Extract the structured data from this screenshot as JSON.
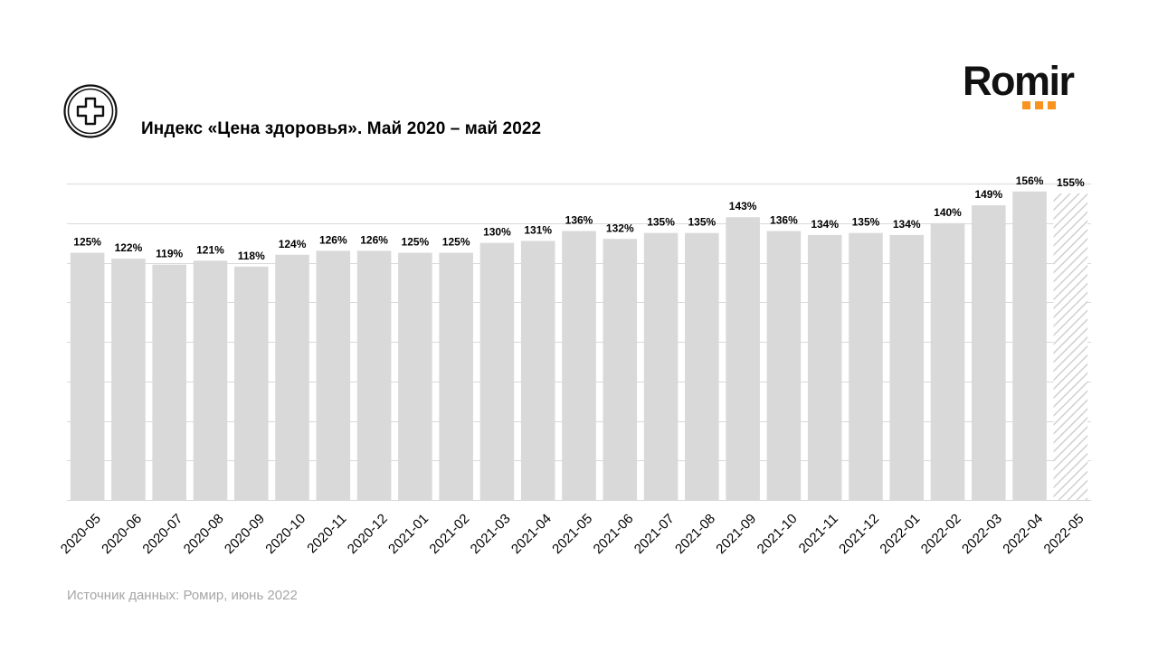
{
  "header": {
    "title": "Индекс «Цена здоровья». Май 2020 – май 2022",
    "icon": "medical-cross-icon"
  },
  "logo": {
    "text": "Romir",
    "dot_color": "#f7931e"
  },
  "footer": {
    "source": "Источник данных: Ромир, июнь 2022"
  },
  "chart_data": {
    "type": "bar",
    "title": "Индекс «Цена здоровья». Май 2020 – май 2022",
    "xlabel": "",
    "ylabel": "",
    "ylim": [
      0,
      160
    ],
    "grid": true,
    "legend": "none",
    "categories": [
      "2020-05",
      "2020-06",
      "2020-07",
      "2020-08",
      "2020-09",
      "2020-10",
      "2020-11",
      "2020-12",
      "2021-01",
      "2021-02",
      "2021-03",
      "2021-04",
      "2021-05",
      "2021-06",
      "2021-07",
      "2021-08",
      "2021-09",
      "2021-10",
      "2021-11",
      "2021-12",
      "2022-01",
      "2022-02",
      "2022-03",
      "2022-04",
      "2022-05"
    ],
    "values": [
      125,
      122,
      119,
      121,
      118,
      124,
      126,
      126,
      125,
      125,
      130,
      131,
      136,
      132,
      135,
      135,
      143,
      136,
      134,
      135,
      134,
      140,
      149,
      156,
      155
    ],
    "labels": [
      "125%",
      "122%",
      "119%",
      "121%",
      "118%",
      "124%",
      "126%",
      "126%",
      "125%",
      "125%",
      "130%",
      "131%",
      "136%",
      "132%",
      "135%",
      "135%",
      "143%",
      "136%",
      "134%",
      "135%",
      "134%",
      "140%",
      "149%",
      "156%",
      "155%"
    ],
    "hatched": [
      false,
      false,
      false,
      false,
      false,
      false,
      false,
      false,
      false,
      false,
      false,
      false,
      false,
      false,
      false,
      false,
      false,
      false,
      false,
      false,
      false,
      false,
      false,
      false,
      true
    ],
    "bar_color": "#d9d9d9",
    "grid_color": "#d9d9d9"
  }
}
